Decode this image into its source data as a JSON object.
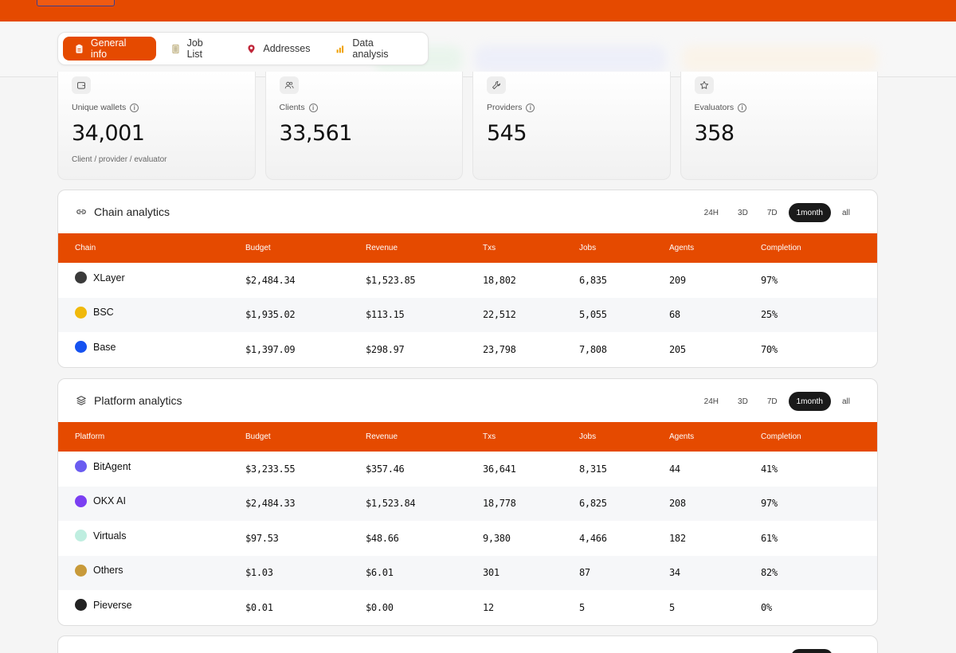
{
  "tabs": [
    {
      "label": "General info",
      "icon": "clipboard-icon",
      "active": true
    },
    {
      "label": "Job List",
      "icon": "list-icon",
      "active": false
    },
    {
      "label": "Addresses",
      "icon": "map-pin-icon",
      "active": false
    },
    {
      "label": "Data analysis",
      "icon": "bar-chart-icon",
      "active": false
    }
  ],
  "stats": [
    {
      "label": "Unique wallets",
      "value": "34,001",
      "sub": "Client / provider / evaluator",
      "icon": "wallet-icon"
    },
    {
      "label": "Clients",
      "value": "33,561",
      "sub": "",
      "icon": "users-icon"
    },
    {
      "label": "Providers",
      "value": "545",
      "sub": "",
      "icon": "wrench-icon"
    },
    {
      "label": "Evaluators",
      "value": "358",
      "sub": "",
      "icon": "star-icon"
    }
  ],
  "ranges": [
    "24H",
    "3D",
    "7D",
    "1month",
    "all"
  ],
  "active_range": "1month",
  "chain_analytics": {
    "title": "Chain analytics",
    "columns": [
      "Chain",
      "Budget",
      "Revenue",
      "Txs",
      "Jobs",
      "Agents",
      "Completion"
    ],
    "rows": [
      {
        "name": "XLayer",
        "icon": "xlayer-logo-icon",
        "color": "#3a3a3a",
        "budget": "$2,484.34",
        "revenue": "$1,523.85",
        "txs": "18,802",
        "jobs": "6,835",
        "agents": "209",
        "completion": "97%"
      },
      {
        "name": "BSC",
        "icon": "bsc-logo-icon",
        "color": "#f0b90b",
        "budget": "$1,935.02",
        "revenue": "$113.15",
        "txs": "22,512",
        "jobs": "5,055",
        "agents": "68",
        "completion": "25%"
      },
      {
        "name": "Base",
        "icon": "base-logo-icon",
        "color": "#1652f0",
        "budget": "$1,397.09",
        "revenue": "$298.97",
        "txs": "23,798",
        "jobs": "7,808",
        "agents": "205",
        "completion": "70%"
      }
    ]
  },
  "platform_analytics": {
    "title": "Platform analytics",
    "columns": [
      "Platform",
      "Budget",
      "Revenue",
      "Txs",
      "Jobs",
      "Agents",
      "Completion"
    ],
    "rows": [
      {
        "name": "BitAgent",
        "icon": "bitagent-logo-icon",
        "color": "#6a5cf0",
        "budget": "$3,233.55",
        "revenue": "$357.46",
        "txs": "36,641",
        "jobs": "8,315",
        "agents": "44",
        "completion": "41%"
      },
      {
        "name": "OKX AI",
        "icon": "okx-ai-logo-icon",
        "color": "#7b3ff2",
        "budget": "$2,484.33",
        "revenue": "$1,523.84",
        "txs": "18,778",
        "jobs": "6,825",
        "agents": "208",
        "completion": "97%"
      },
      {
        "name": "Virtuals",
        "icon": "virtuals-logo-icon",
        "color": "#bfeee0",
        "budget": "$97.53",
        "revenue": "$48.66",
        "txs": "9,380",
        "jobs": "4,466",
        "agents": "182",
        "completion": "61%"
      },
      {
        "name": "Others",
        "icon": "others-logo-icon",
        "color": "#c89a3a",
        "budget": "$1.03",
        "revenue": "$6.01",
        "txs": "301",
        "jobs": "87",
        "agents": "34",
        "completion": "82%"
      },
      {
        "name": "Pieverse",
        "icon": "pieverse-logo-icon",
        "color": "#222222",
        "budget": "$0.01",
        "revenue": "$0.00",
        "txs": "12",
        "jobs": "5",
        "agents": "5",
        "completion": "0%"
      }
    ]
  },
  "colors": {
    "accent": "#e54a00",
    "dark": "#1a1a1a"
  }
}
